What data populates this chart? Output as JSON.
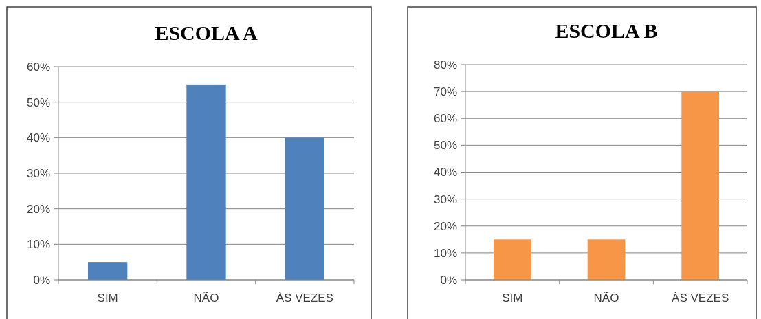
{
  "chart_data": [
    {
      "type": "bar",
      "title": "ESCOLA  A",
      "categories": [
        "SIM",
        "NÃO",
        "ÀS VEZES"
      ],
      "values": [
        5,
        55,
        40
      ],
      "color": "#4f81bd",
      "ylim": [
        0,
        60
      ],
      "yticks": [
        {
          "value": 0,
          "label": "0%"
        },
        {
          "value": 10,
          "label": "10%"
        },
        {
          "value": 20,
          "label": "20%"
        },
        {
          "value": 30,
          "label": "30%"
        },
        {
          "value": 40,
          "label": "40%"
        },
        {
          "value": 50,
          "label": "50%"
        },
        {
          "value": 60,
          "label": "60%"
        }
      ],
      "grid": "y"
    },
    {
      "type": "bar",
      "title": "ESCOLA B",
      "categories": [
        "SIM",
        "NÃO",
        "ÀS VEZES"
      ],
      "values": [
        15,
        15,
        70
      ],
      "color": "#f79646",
      "ylim": [
        0,
        80
      ],
      "yticks": [
        {
          "value": 0,
          "label": "0%"
        },
        {
          "value": 10,
          "label": "10%"
        },
        {
          "value": 20,
          "label": "20%"
        },
        {
          "value": 30,
          "label": "30%"
        },
        {
          "value": 40,
          "label": "40%"
        },
        {
          "value": 50,
          "label": "50%"
        },
        {
          "value": 60,
          "label": "60%"
        },
        {
          "value": 70,
          "label": "70%"
        },
        {
          "value": 80,
          "label": "80%"
        }
      ],
      "grid": "y"
    }
  ]
}
